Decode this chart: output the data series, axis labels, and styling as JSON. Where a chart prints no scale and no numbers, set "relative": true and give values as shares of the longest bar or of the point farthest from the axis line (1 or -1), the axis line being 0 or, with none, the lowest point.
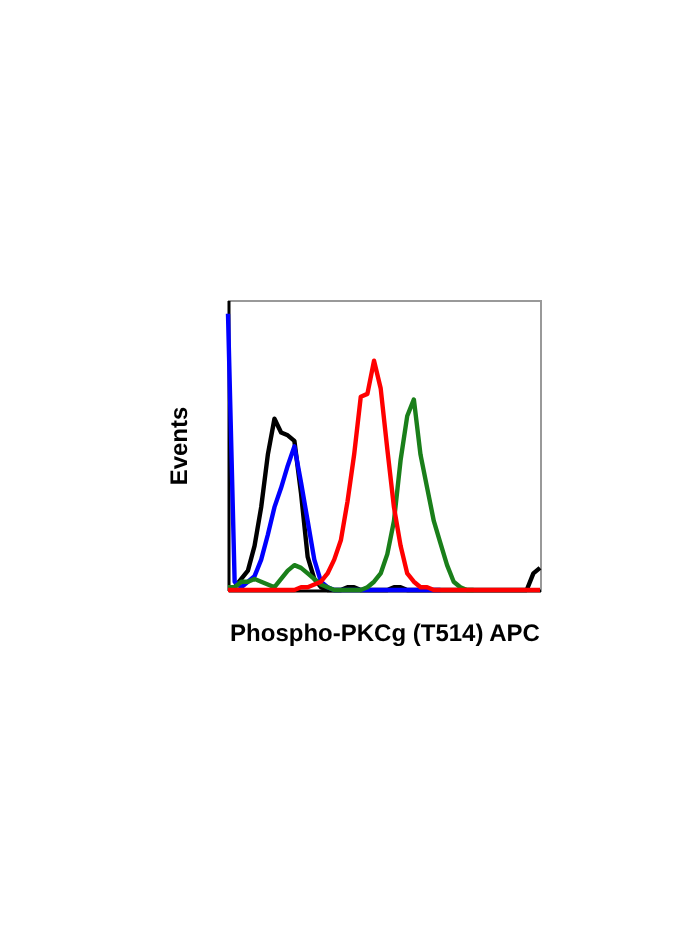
{
  "chart_data": {
    "type": "line",
    "relative": true,
    "xlabel": "Phospho-PKCg (T514) APC",
    "ylabel": "Events",
    "legend": false,
    "grid": false,
    "marker": "none",
    "line_style": "solid",
    "categories": [
      null,
      null,
      null,
      null,
      null,
      null,
      null,
      null,
      null,
      null,
      null,
      null,
      null,
      null,
      null,
      null,
      null,
      null,
      null,
      null,
      null,
      null,
      null,
      null,
      null,
      null,
      null,
      null,
      null,
      null,
      null,
      null,
      null,
      null,
      null,
      null,
      null,
      null,
      null,
      null,
      null,
      null,
      null,
      null,
      null,
      null,
      null,
      null
    ],
    "series": [
      {
        "color": "#000000",
        "values": [
          0.01,
          0.01,
          0.04,
          0.07,
          0.16,
          0.3,
          0.49,
          0.62,
          0.57,
          0.56,
          0.54,
          0.35,
          0.12,
          0.04,
          0.01,
          0,
          0,
          0,
          0.01,
          0.01,
          0,
          0,
          0,
          0,
          0,
          0.01,
          0.01,
          0,
          0,
          0,
          0,
          0,
          0,
          0,
          0,
          0,
          0,
          0,
          0,
          0,
          0,
          0,
          0,
          0,
          0,
          0,
          0.06,
          0.08
        ]
      },
      {
        "color": "#0000ff",
        "values": [
          1,
          0.03,
          0.01,
          0.03,
          0.05,
          0.11,
          0.2,
          0.3,
          0.37,
          0.45,
          0.52,
          0.39,
          0.25,
          0.11,
          0.03,
          0.01,
          0,
          0,
          0,
          0,
          0,
          0,
          0,
          0,
          0,
          0,
          0,
          0,
          0,
          0,
          0,
          0,
          0,
          null,
          null,
          null,
          null,
          null,
          null,
          null,
          null,
          null,
          null,
          null,
          null,
          null,
          null,
          null
        ]
      },
      {
        "color": "#1a7f1a",
        "values": [
          0.01,
          0.01,
          0.03,
          0.03,
          0.04,
          0.03,
          0.02,
          0.01,
          0.04,
          0.07,
          0.09,
          0.08,
          0.06,
          0.04,
          0.02,
          0.01,
          0,
          0,
          0,
          0,
          0,
          0.01,
          0.03,
          0.06,
          0.13,
          0.25,
          0.47,
          0.63,
          0.69,
          0.49,
          0.37,
          0.25,
          0.17,
          0.09,
          0.03,
          0.01,
          0,
          0,
          null,
          null,
          null,
          null,
          null,
          null,
          null,
          null,
          null,
          null
        ]
      },
      {
        "color": "#ff0000",
        "values": [
          0,
          0,
          0,
          0,
          0,
          0,
          0,
          0,
          0,
          0,
          0,
          0.01,
          0.01,
          0.02,
          0.03,
          0.06,
          0.11,
          0.18,
          0.32,
          0.49,
          0.7,
          0.71,
          0.83,
          0.73,
          0.51,
          0.3,
          0.16,
          0.06,
          0.03,
          0.01,
          0.01,
          0,
          0,
          0,
          0,
          0,
          0,
          0,
          0,
          0,
          0,
          0,
          0,
          0,
          0,
          0,
          0,
          0
        ]
      }
    ]
  }
}
